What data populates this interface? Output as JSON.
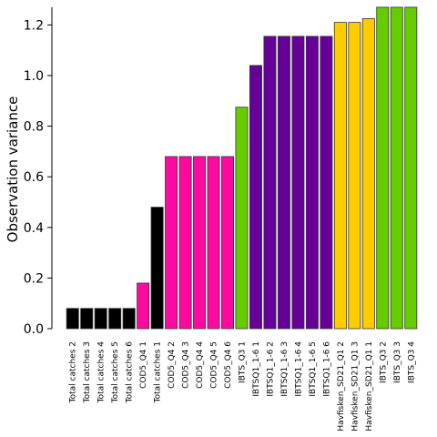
{
  "chart_data": {
    "type": "bar",
    "ylabel": "Observation variance",
    "xlabel": "",
    "title": "",
    "ylim": [
      0,
      1.27
    ],
    "yticks": [
      0.0,
      0.2,
      0.4,
      0.6,
      0.8,
      1.0,
      1.2
    ],
    "ytick_labels": [
      "0.0",
      "0.2",
      "0.4",
      "0.6",
      "0.8",
      "1.0",
      "1.2"
    ],
    "grid": false,
    "categories": [
      "Total catches 2",
      "Total catches 3",
      "Total catches 4",
      "Total catches 5",
      "Total catches 6",
      "COD5_Q4 1",
      "Total catches 1",
      "COD5_Q4 2",
      "COD5_Q4 3",
      "COD5_Q4 4",
      "COD5_Q4 5",
      "COD5_Q4 6",
      "IBTS_Q3 1",
      "IBTSQ1_1-6 1",
      "IBTSQ1_1-6 2",
      "IBTSQ1_1-6 3",
      "IBTSQ1_1-6 4",
      "IBTSQ1_1-6 5",
      "IBTSQ1_1-6 6",
      "Havfisken_SD21_Q1 2",
      "Havfisken_SD21_Q1 3",
      "Havfisken_SD21_Q1 1",
      "IBTS_Q3 2",
      "IBTS_Q3 3",
      "IBTS_Q3 4"
    ],
    "values": [
      0.08,
      0.08,
      0.08,
      0.08,
      0.08,
      0.18,
      0.48,
      0.68,
      0.68,
      0.68,
      0.68,
      0.68,
      0.875,
      1.04,
      1.155,
      1.155,
      1.155,
      1.155,
      1.155,
      1.21,
      1.21,
      1.225,
      1.27,
      1.27,
      1.27
    ],
    "colors": [
      "#000000",
      "#000000",
      "#000000",
      "#000000",
      "#000000",
      "#ff0aa0",
      "#000000",
      "#ff0aa0",
      "#ff0aa0",
      "#ff0aa0",
      "#ff0aa0",
      "#ff0aa0",
      "#66cc00",
      "#660099",
      "#660099",
      "#660099",
      "#660099",
      "#660099",
      "#660099",
      "#ffcc00",
      "#ffcc00",
      "#ffcc00",
      "#66cc00",
      "#66cc00",
      "#66cc00"
    ],
    "bar_edge_color": "#333333"
  }
}
